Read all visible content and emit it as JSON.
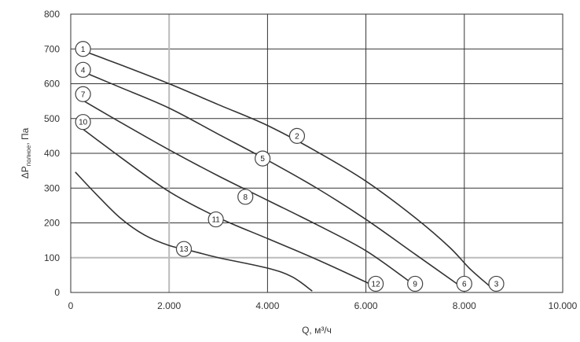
{
  "chart_data": {
    "type": "line",
    "title": "",
    "xlabel": "Q, м³/ч",
    "ylabel": "ΔP",
    "ylabel_sub": "полное",
    "ylabel_unit": ", Па",
    "xlim": [
      0,
      10000
    ],
    "ylim": [
      0,
      800
    ],
    "x_ticks": [
      0,
      2000,
      4000,
      6000,
      8000,
      10000
    ],
    "x_tick_labels": [
      "0",
      "2.000",
      "4.000",
      "6.000",
      "8.000",
      "10.000"
    ],
    "y_ticks": [
      0,
      100,
      200,
      300,
      400,
      500,
      600,
      700,
      800
    ],
    "y_tick_labels": [
      "0",
      "100",
      "200",
      "300",
      "400",
      "500",
      "600",
      "700",
      "800"
    ],
    "grid": true,
    "colors": {
      "curve": "#333333",
      "grid_major": "#333333",
      "grid_minor": "#bbbbbb",
      "marker_fill": "#ffffff",
      "marker_stroke": "#444444"
    },
    "series": [
      {
        "points": [
          [
            150,
            700
          ],
          [
            1000,
            655
          ],
          [
            2000,
            600
          ],
          [
            3000,
            540
          ],
          [
            4000,
            480
          ],
          [
            5000,
            405
          ],
          [
            6000,
            320
          ],
          [
            7000,
            215
          ],
          [
            7700,
            130
          ],
          [
            8100,
            70
          ],
          [
            8500,
            20
          ]
        ]
      },
      {
        "points": [
          [
            150,
            640
          ],
          [
            1000,
            590
          ],
          [
            2000,
            530
          ],
          [
            3000,
            455
          ],
          [
            4000,
            380
          ],
          [
            5000,
            300
          ],
          [
            6000,
            210
          ],
          [
            7000,
            110
          ],
          [
            7900,
            20
          ]
        ]
      },
      {
        "points": [
          [
            150,
            560
          ],
          [
            1000,
            490
          ],
          [
            2000,
            410
          ],
          [
            3000,
            335
          ],
          [
            4000,
            265
          ],
          [
            5000,
            195
          ],
          [
            6000,
            120
          ],
          [
            6900,
            30
          ]
        ]
      },
      {
        "points": [
          [
            150,
            480
          ],
          [
            1000,
            390
          ],
          [
            2000,
            290
          ],
          [
            3000,
            215
          ],
          [
            4000,
            155
          ],
          [
            5000,
            95
          ],
          [
            6000,
            30
          ],
          [
            6200,
            15
          ]
        ]
      },
      {
        "points": [
          [
            100,
            345
          ],
          [
            500,
            285
          ],
          [
            1000,
            215
          ],
          [
            1500,
            165
          ],
          [
            2000,
            135
          ],
          [
            2500,
            118
          ],
          [
            3000,
            100
          ],
          [
            4000,
            70
          ],
          [
            4500,
            45
          ],
          [
            4900,
            5
          ]
        ]
      }
    ],
    "markers": [
      {
        "label": "1",
        "x": 250,
        "y": 700
      },
      {
        "label": "2",
        "x": 4600,
        "y": 450
      },
      {
        "label": "3",
        "x": 8650,
        "y": 25
      },
      {
        "label": "4",
        "x": 250,
        "y": 640
      },
      {
        "label": "5",
        "x": 3900,
        "y": 385
      },
      {
        "label": "6",
        "x": 8000,
        "y": 25
      },
      {
        "label": "7",
        "x": 250,
        "y": 570
      },
      {
        "label": "8",
        "x": 3550,
        "y": 275
      },
      {
        "label": "9",
        "x": 7000,
        "y": 25
      },
      {
        "label": "10",
        "x": 250,
        "y": 490
      },
      {
        "label": "11",
        "x": 2950,
        "y": 210
      },
      {
        "label": "12",
        "x": 6200,
        "y": 25
      },
      {
        "label": "13",
        "x": 2300,
        "y": 125
      }
    ]
  }
}
